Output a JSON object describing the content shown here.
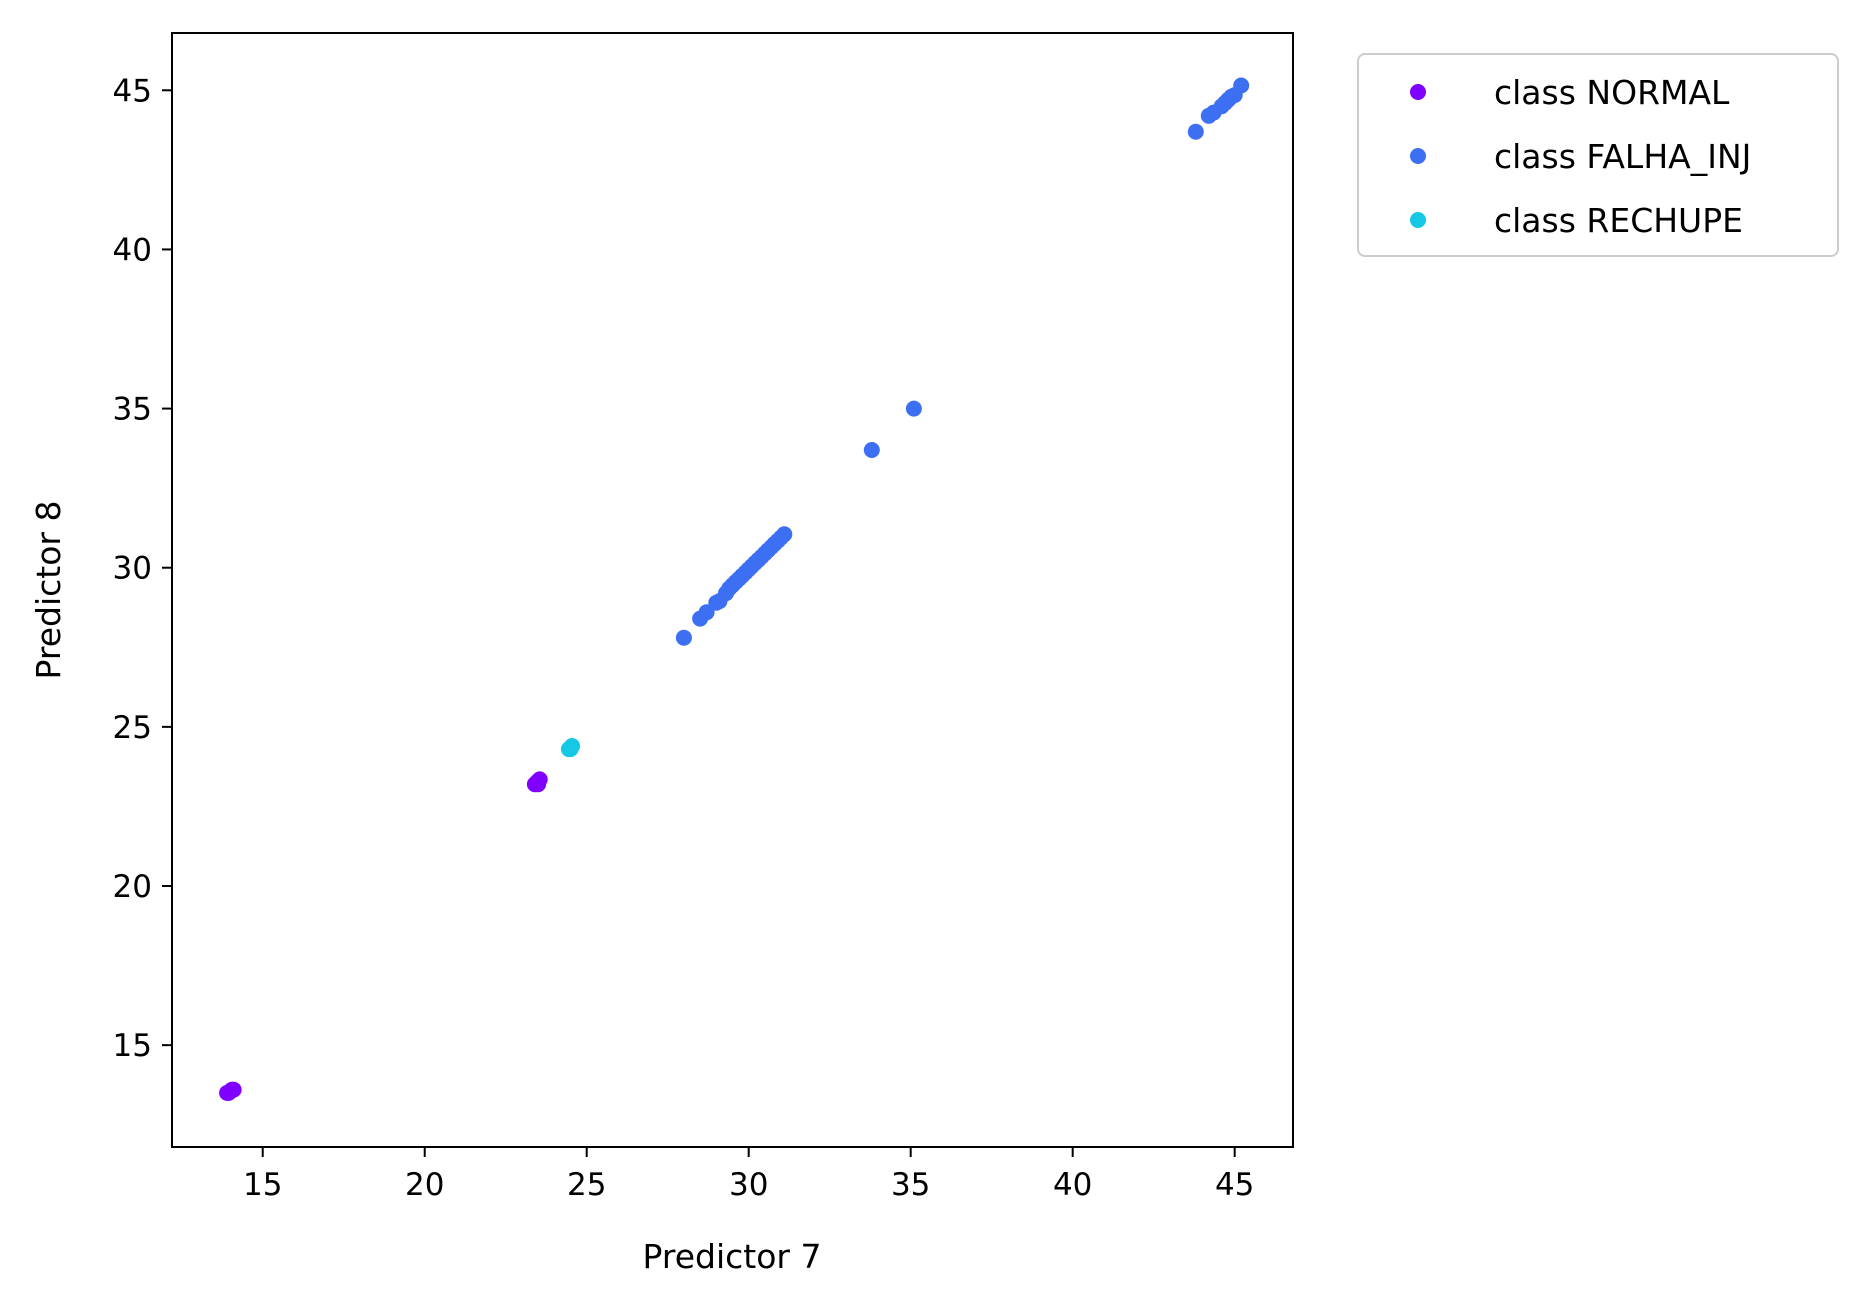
{
  "chart_data": {
    "type": "scatter",
    "title": "",
    "xlabel": "Predictor 7",
    "ylabel": "Predictor 8",
    "xlim": [
      12.2,
      46.8
    ],
    "ylim": [
      11.8,
      46.8
    ],
    "xticks": [
      15,
      20,
      25,
      30,
      35,
      40,
      45
    ],
    "yticks": [
      15,
      20,
      25,
      30,
      35,
      40,
      45
    ],
    "grid": false,
    "legend_position": "outside-top-right",
    "series": [
      {
        "name": "class NORMAL",
        "color": "#8000ff",
        "points": [
          [
            13.9,
            13.5
          ],
          [
            14.0,
            13.55
          ],
          [
            14.05,
            13.6
          ],
          [
            14.1,
            13.6
          ],
          [
            13.95,
            13.5
          ],
          [
            23.4,
            23.2
          ],
          [
            23.45,
            23.25
          ],
          [
            23.5,
            23.3
          ],
          [
            23.55,
            23.35
          ],
          [
            23.5,
            23.2
          ]
        ]
      },
      {
        "name": "class FALHA_INJ",
        "color": "#3c6ff2",
        "points": [
          [
            28.0,
            27.8
          ],
          [
            28.5,
            28.4
          ],
          [
            28.7,
            28.6
          ],
          [
            29.0,
            28.9
          ],
          [
            29.1,
            28.95
          ],
          [
            29.3,
            29.2
          ],
          [
            29.4,
            29.35
          ],
          [
            29.5,
            29.45
          ],
          [
            29.6,
            29.55
          ],
          [
            29.7,
            29.65
          ],
          [
            29.8,
            29.75
          ],
          [
            29.9,
            29.85
          ],
          [
            30.0,
            29.95
          ],
          [
            30.1,
            30.05
          ],
          [
            30.2,
            30.15
          ],
          [
            30.3,
            30.25
          ],
          [
            30.4,
            30.35
          ],
          [
            30.5,
            30.45
          ],
          [
            30.6,
            30.55
          ],
          [
            30.7,
            30.65
          ],
          [
            30.8,
            30.75
          ],
          [
            30.9,
            30.85
          ],
          [
            31.0,
            30.95
          ],
          [
            31.1,
            31.05
          ],
          [
            33.8,
            33.7
          ],
          [
            35.1,
            35.0
          ],
          [
            43.8,
            43.7
          ],
          [
            44.2,
            44.2
          ],
          [
            44.35,
            44.3
          ],
          [
            44.6,
            44.5
          ],
          [
            44.7,
            44.6
          ],
          [
            44.8,
            44.7
          ],
          [
            44.9,
            44.8
          ],
          [
            45.0,
            44.85
          ],
          [
            45.2,
            45.15
          ]
        ]
      },
      {
        "name": "class RECHUPE",
        "color": "#15c8e3",
        "points": [
          [
            24.45,
            24.3
          ],
          [
            24.5,
            24.35
          ],
          [
            24.55,
            24.4
          ],
          [
            24.5,
            24.3
          ]
        ]
      }
    ]
  }
}
